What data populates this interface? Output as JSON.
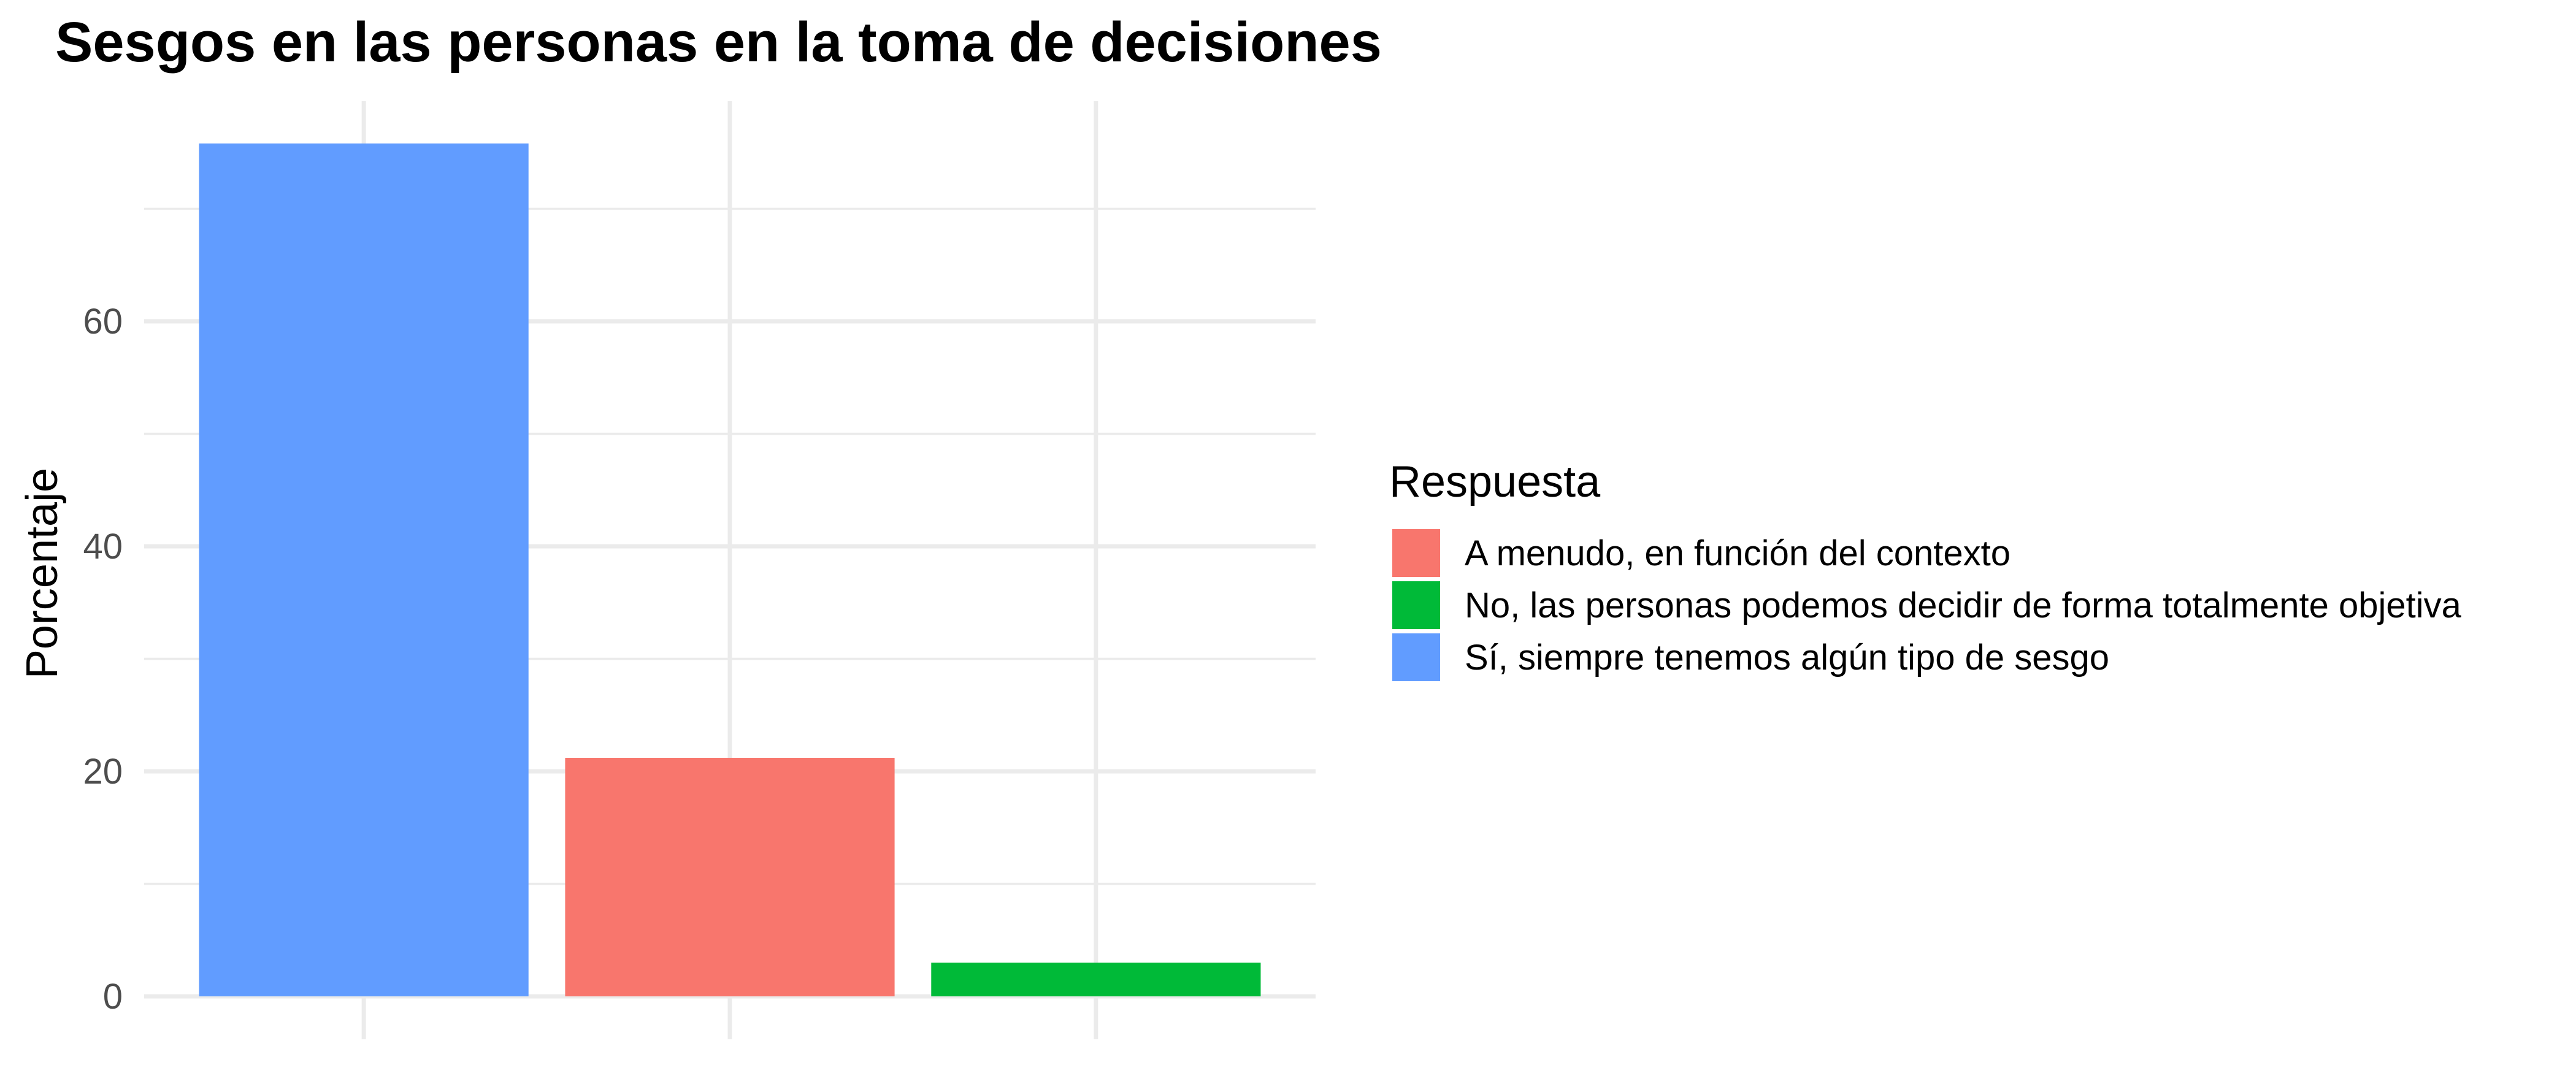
{
  "chart_data": {
    "type": "bar",
    "title": "Sesgos en las personas en la toma de decisiones",
    "xlabel": "",
    "ylabel": "Porcentaje",
    "ylim": [
      0,
      79
    ],
    "yticks": [
      0,
      20,
      40,
      60
    ],
    "grid": true,
    "legend": {
      "title": "Respuesta",
      "placement": "right",
      "entries": [
        {
          "label": "A menudo, en función del contexto",
          "color": "#F8766D"
        },
        {
          "label": "No, las personas podemos decidir de forma totalmente objetiva",
          "color": "#00BA38"
        },
        {
          "label": "Sí, siempre tenemos algún tipo de sesgo",
          "color": "#619CFF"
        }
      ]
    },
    "bars": [
      {
        "category": "Sí, siempre tenemos algún tipo de sesgo",
        "value": 75.8,
        "color": "#619CFF"
      },
      {
        "category": "A menudo, en función del contexto",
        "value": 21.2,
        "color": "#F8766D"
      },
      {
        "category": "No, las personas podemos decidir de forma totalmente objetiva",
        "value": 3.0,
        "color": "#00BA38"
      }
    ]
  }
}
